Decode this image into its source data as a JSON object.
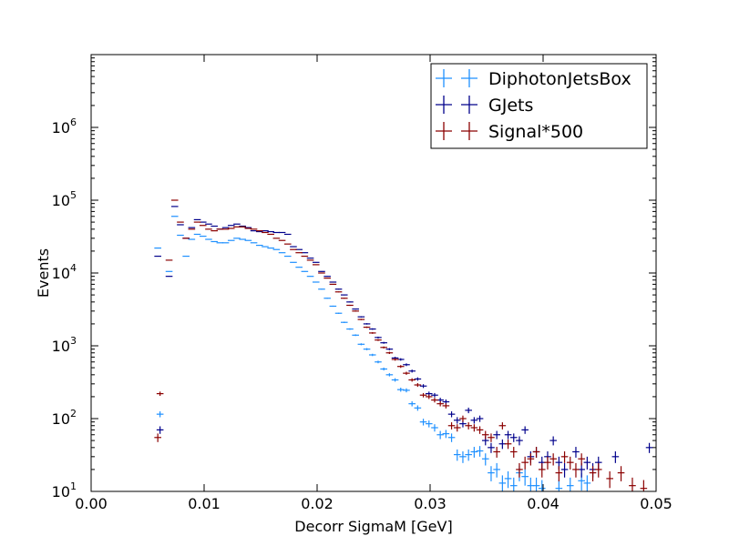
{
  "chart_data": {
    "type": "scatter",
    "title": "",
    "xlabel": "Decorr SigmaM [GeV]",
    "ylabel": "Events",
    "xlim": [
      0.0,
      0.05
    ],
    "ylim": [
      10,
      10000000
    ],
    "yscale": "log",
    "x_ticks": [
      "0.00",
      "0.01",
      "0.02",
      "0.03",
      "0.04",
      "0.05"
    ],
    "x_tick_values": [
      0.0,
      0.01,
      0.02,
      0.03,
      0.04,
      0.05
    ],
    "y_tick_exponents": [
      "1",
      "2",
      "3",
      "4",
      "5",
      "6"
    ],
    "y_tick_values": [
      10,
      100,
      1000,
      10000,
      100000,
      1000000
    ],
    "legend_location": "top-right",
    "series": [
      {
        "name": "DiphotonJetsBox",
        "color": "#1e90ff",
        "points": [
          [
            0.0059,
            22000
          ],
          [
            0.0061,
            115
          ],
          [
            0.0069,
            10500
          ],
          [
            0.0074,
            60000
          ],
          [
            0.0079,
            33000
          ],
          [
            0.0084,
            17000
          ],
          [
            0.0089,
            29000
          ],
          [
            0.0094,
            34000
          ],
          [
            0.0099,
            32000
          ],
          [
            0.0104,
            29000
          ],
          [
            0.0109,
            27000
          ],
          [
            0.0114,
            26000
          ],
          [
            0.0119,
            26000
          ],
          [
            0.0124,
            28000
          ],
          [
            0.0129,
            30000
          ],
          [
            0.0134,
            29000
          ],
          [
            0.0139,
            28000
          ],
          [
            0.0144,
            26000
          ],
          [
            0.0149,
            24000
          ],
          [
            0.0154,
            23000
          ],
          [
            0.0159,
            22000
          ],
          [
            0.0164,
            21000
          ],
          [
            0.0169,
            19000
          ],
          [
            0.0174,
            17000
          ],
          [
            0.0179,
            14000
          ],
          [
            0.0184,
            12000
          ],
          [
            0.0189,
            10500
          ],
          [
            0.0194,
            9000
          ],
          [
            0.0199,
            7500
          ],
          [
            0.0204,
            6000
          ],
          [
            0.0209,
            4500
          ],
          [
            0.0214,
            3500
          ],
          [
            0.0219,
            2800
          ],
          [
            0.0224,
            2100
          ],
          [
            0.0229,
            1700
          ],
          [
            0.0234,
            1400
          ],
          [
            0.0239,
            1050
          ],
          [
            0.0244,
            900
          ],
          [
            0.0249,
            750
          ],
          [
            0.0254,
            600
          ],
          [
            0.0259,
            480
          ],
          [
            0.0264,
            400
          ],
          [
            0.0269,
            340
          ],
          [
            0.0274,
            250
          ],
          [
            0.0279,
            245
          ],
          [
            0.0284,
            160
          ],
          [
            0.0289,
            140
          ],
          [
            0.0294,
            90
          ],
          [
            0.0299,
            85
          ],
          [
            0.0304,
            75
          ],
          [
            0.0309,
            60
          ],
          [
            0.0314,
            62
          ],
          [
            0.0319,
            55
          ],
          [
            0.0324,
            32
          ],
          [
            0.0329,
            30
          ],
          [
            0.0334,
            32
          ],
          [
            0.0339,
            35
          ],
          [
            0.0344,
            36
          ],
          [
            0.0349,
            28
          ],
          [
            0.0354,
            18
          ],
          [
            0.0359,
            20
          ],
          [
            0.0364,
            13
          ],
          [
            0.0369,
            15
          ],
          [
            0.0374,
            12
          ],
          [
            0.0379,
            18
          ],
          [
            0.0384,
            16
          ],
          [
            0.0389,
            12
          ],
          [
            0.0394,
            12
          ],
          [
            0.0399,
            11
          ],
          [
            0.0414,
            11
          ],
          [
            0.0424,
            12
          ],
          [
            0.0434,
            14
          ],
          [
            0.0439,
            13
          ]
        ]
      },
      {
        "name": "GJets",
        "color": "#00008b",
        "points": [
          [
            0.0059,
            17000
          ],
          [
            0.0061,
            70
          ],
          [
            0.0069,
            9000
          ],
          [
            0.0074,
            82000
          ],
          [
            0.0079,
            46000
          ],
          [
            0.0084,
            30000
          ],
          [
            0.0089,
            42000
          ],
          [
            0.0094,
            54000
          ],
          [
            0.0099,
            50000
          ],
          [
            0.0104,
            47000
          ],
          [
            0.0109,
            44000
          ],
          [
            0.0114,
            40000
          ],
          [
            0.0119,
            42000
          ],
          [
            0.0124,
            45000
          ],
          [
            0.0129,
            47000
          ],
          [
            0.0134,
            44000
          ],
          [
            0.0139,
            42000
          ],
          [
            0.0144,
            38000
          ],
          [
            0.0149,
            37000
          ],
          [
            0.0154,
            38000
          ],
          [
            0.0159,
            37000
          ],
          [
            0.0164,
            36000
          ],
          [
            0.0169,
            36000
          ],
          [
            0.0174,
            34000
          ],
          [
            0.0179,
            23000
          ],
          [
            0.0184,
            21000
          ],
          [
            0.0189,
            19000
          ],
          [
            0.0194,
            16000
          ],
          [
            0.0199,
            14000
          ],
          [
            0.0204,
            10500
          ],
          [
            0.0209,
            9000
          ],
          [
            0.0214,
            7500
          ],
          [
            0.0219,
            6000
          ],
          [
            0.0224,
            5000
          ],
          [
            0.0229,
            4000
          ],
          [
            0.0234,
            3200
          ],
          [
            0.0239,
            2500
          ],
          [
            0.0244,
            2000
          ],
          [
            0.0249,
            1700
          ],
          [
            0.0254,
            1300
          ],
          [
            0.0259,
            1100
          ],
          [
            0.0264,
            900
          ],
          [
            0.0269,
            680
          ],
          [
            0.0274,
            650
          ],
          [
            0.0279,
            550
          ],
          [
            0.0284,
            450
          ],
          [
            0.0289,
            350
          ],
          [
            0.0294,
            280
          ],
          [
            0.0299,
            220
          ],
          [
            0.0304,
            210
          ],
          [
            0.0309,
            180
          ],
          [
            0.0314,
            170
          ],
          [
            0.0319,
            115
          ],
          [
            0.0324,
            95
          ],
          [
            0.0329,
            85
          ],
          [
            0.0334,
            130
          ],
          [
            0.0339,
            95
          ],
          [
            0.0344,
            100
          ],
          [
            0.0349,
            50
          ],
          [
            0.0354,
            40
          ],
          [
            0.0359,
            60
          ],
          [
            0.0364,
            45
          ],
          [
            0.0369,
            60
          ],
          [
            0.0374,
            55
          ],
          [
            0.0379,
            50
          ],
          [
            0.0384,
            70
          ],
          [
            0.0389,
            30
          ],
          [
            0.0394,
            35
          ],
          [
            0.0399,
            25
          ],
          [
            0.0404,
            30
          ],
          [
            0.0409,
            50
          ],
          [
            0.0414,
            25
          ],
          [
            0.0419,
            20
          ],
          [
            0.0429,
            35
          ],
          [
            0.0434,
            20
          ],
          [
            0.0439,
            25
          ],
          [
            0.0444,
            20
          ],
          [
            0.0449,
            25
          ],
          [
            0.0464,
            30
          ],
          [
            0.0494,
            40
          ]
        ]
      },
      {
        "name": "Signal*500",
        "color": "#8b0000",
        "points": [
          [
            0.0059,
            55
          ],
          [
            0.0061,
            220
          ],
          [
            0.0069,
            15000
          ],
          [
            0.0074,
            100000
          ],
          [
            0.0079,
            50000
          ],
          [
            0.0084,
            30000
          ],
          [
            0.0089,
            40000
          ],
          [
            0.0094,
            50000
          ],
          [
            0.0099,
            45000
          ],
          [
            0.0104,
            40000
          ],
          [
            0.0109,
            38000
          ],
          [
            0.0114,
            40000
          ],
          [
            0.0119,
            40000
          ],
          [
            0.0124,
            41000
          ],
          [
            0.0129,
            43000
          ],
          [
            0.0134,
            43000
          ],
          [
            0.0139,
            41000
          ],
          [
            0.0144,
            40000
          ],
          [
            0.0149,
            38000
          ],
          [
            0.0154,
            36000
          ],
          [
            0.0159,
            34000
          ],
          [
            0.0164,
            30000
          ],
          [
            0.0169,
            28000
          ],
          [
            0.0174,
            25000
          ],
          [
            0.0179,
            21000
          ],
          [
            0.0184,
            19000
          ],
          [
            0.0189,
            17000
          ],
          [
            0.0194,
            15000
          ],
          [
            0.0199,
            13000
          ],
          [
            0.0204,
            10000
          ],
          [
            0.0209,
            8500
          ],
          [
            0.0214,
            7000
          ],
          [
            0.0219,
            5500
          ],
          [
            0.0224,
            4500
          ],
          [
            0.0229,
            3600
          ],
          [
            0.0234,
            3000
          ],
          [
            0.0239,
            2300
          ],
          [
            0.0244,
            1800
          ],
          [
            0.0249,
            1500
          ],
          [
            0.0254,
            1200
          ],
          [
            0.0259,
            950
          ],
          [
            0.0264,
            800
          ],
          [
            0.0269,
            650
          ],
          [
            0.0274,
            520
          ],
          [
            0.0279,
            420
          ],
          [
            0.0284,
            340
          ],
          [
            0.0289,
            290
          ],
          [
            0.0294,
            210
          ],
          [
            0.0299,
            200
          ],
          [
            0.0304,
            180
          ],
          [
            0.0309,
            160
          ],
          [
            0.0314,
            150
          ],
          [
            0.0319,
            80
          ],
          [
            0.0324,
            75
          ],
          [
            0.0329,
            100
          ],
          [
            0.0334,
            80
          ],
          [
            0.0339,
            75
          ],
          [
            0.0344,
            70
          ],
          [
            0.0349,
            60
          ],
          [
            0.0354,
            55
          ],
          [
            0.0359,
            35
          ],
          [
            0.0364,
            80
          ],
          [
            0.0369,
            45
          ],
          [
            0.0374,
            35
          ],
          [
            0.0379,
            20
          ],
          [
            0.0384,
            25
          ],
          [
            0.0389,
            28
          ],
          [
            0.0394,
            35
          ],
          [
            0.0399,
            20
          ],
          [
            0.0404,
            25
          ],
          [
            0.0409,
            28
          ],
          [
            0.0414,
            18
          ],
          [
            0.0419,
            30
          ],
          [
            0.0424,
            25
          ],
          [
            0.0429,
            20
          ],
          [
            0.0434,
            28
          ],
          [
            0.0444,
            18
          ],
          [
            0.0449,
            20
          ],
          [
            0.0459,
            15
          ],
          [
            0.0469,
            18
          ],
          [
            0.0479,
            12
          ],
          [
            0.0489,
            11
          ]
        ]
      }
    ]
  }
}
